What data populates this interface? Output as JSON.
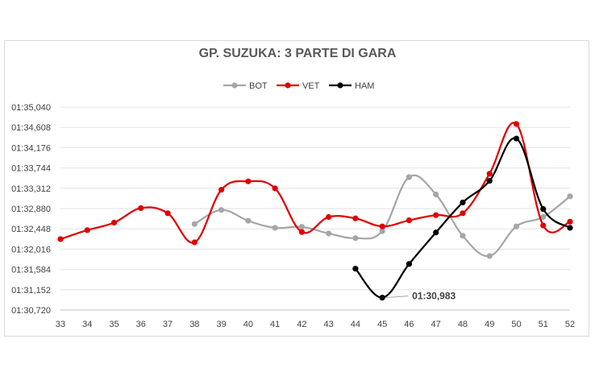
{
  "chart_data": {
    "type": "line",
    "title": "GP. SUZUKA: 3 PARTE DI GARA",
    "xlabel": "",
    "ylabel": "",
    "x": [
      33,
      34,
      35,
      36,
      37,
      38,
      39,
      40,
      41,
      42,
      43,
      44,
      45,
      46,
      47,
      48,
      49,
      50,
      51,
      52
    ],
    "yticks": [
      "01:30,720",
      "01:31,152",
      "01:31,584",
      "01:32,016",
      "01:32,448",
      "01:32,880",
      "01:33,312",
      "01:33,744",
      "01:34,176",
      "01:34,608",
      "01:35,040"
    ],
    "ylim": [
      90.72,
      95.04
    ],
    "legend_position": "top",
    "grid": "horizontal",
    "series": [
      {
        "name": "BOT",
        "color": "#a6a6a6",
        "values": [
          null,
          null,
          null,
          null,
          null,
          92.55,
          92.85,
          92.62,
          92.47,
          92.49,
          92.35,
          92.25,
          92.4,
          93.55,
          93.18,
          92.3,
          91.87,
          92.5,
          92.7,
          93.14
        ]
      },
      {
        "name": "VET",
        "color": "#e00000",
        "values": [
          92.23,
          92.42,
          92.58,
          92.89,
          92.78,
          92.16,
          93.28,
          93.46,
          93.31,
          92.38,
          92.7,
          92.67,
          92.5,
          92.63,
          92.74,
          92.78,
          93.62,
          94.68,
          92.52,
          92.6
        ]
      },
      {
        "name": "HAM",
        "color": "#000000",
        "values": [
          null,
          null,
          null,
          null,
          null,
          null,
          null,
          null,
          null,
          null,
          null,
          91.6,
          90.983,
          91.7,
          92.37,
          93.01,
          93.47,
          94.37,
          92.87,
          92.47
        ]
      }
    ],
    "annotation": {
      "label": "01:30,983",
      "x": 45,
      "series": "HAM"
    }
  }
}
